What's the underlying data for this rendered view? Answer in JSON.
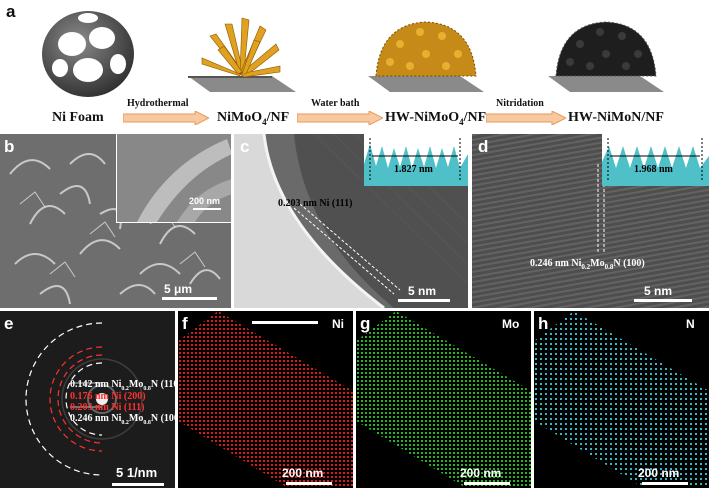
{
  "figure": {
    "panels": {
      "a": "a",
      "b": "b",
      "c": "c",
      "d": "d",
      "e": "e",
      "f": "f",
      "g": "g",
      "h": "h"
    },
    "synthesis": {
      "stages": [
        "Ni Foam",
        "NiMoO4/NF",
        "HW-NiMoO4/NF",
        "HW-NiMoN/NF"
      ],
      "steps": [
        "Hydrothermal",
        "Water bath",
        "Nitridation"
      ]
    },
    "sem": {
      "scale": "5 μm",
      "inset_scale": "200 nm"
    },
    "hrtem_c": {
      "annotation": "0.203 nm Ni (111)",
      "profile_label": "1.827 nm",
      "scale": "5 nm"
    },
    "hrtem_d": {
      "annotation_prefix": "0.246 nm Ni",
      "sub1": "0.2",
      "mid": "Mo",
      "sub2": "0.8",
      "annotation_suffix": "N (100)",
      "profile_label": "1.968 nm",
      "scale": "5 nm"
    },
    "saed": {
      "rings": [
        {
          "text": "0.142 nm Ni0.2Mo0.8N (110)",
          "color": "white"
        },
        {
          "text": "0.176 nm Ni (200)",
          "color": "red"
        },
        {
          "text": "0.203 nm Ni (111)",
          "color": "red"
        },
        {
          "text": "0.246 nm Ni0.2Mo0.8N (100)",
          "color": "white"
        }
      ],
      "scale": "5 1/nm"
    },
    "mapping": {
      "elements": [
        "Ni",
        "Mo",
        "N"
      ],
      "scale": "200 nm",
      "colors": {
        "Ni": "#ff1a1a",
        "Mo": "#22cc22",
        "N": "#3fd0d8"
      }
    }
  }
}
